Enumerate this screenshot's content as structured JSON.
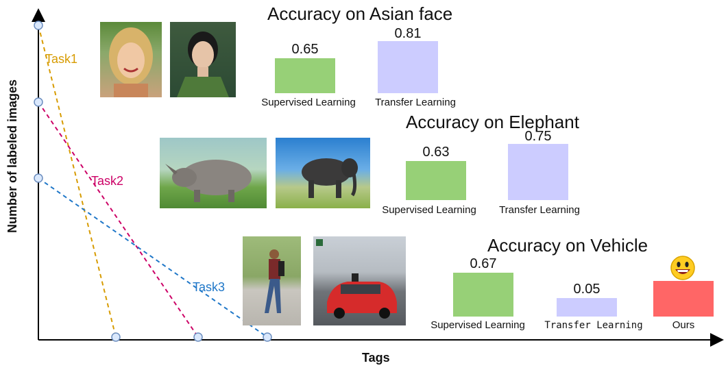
{
  "axes": {
    "y_label": "Number of labeled images",
    "x_label": "Tags"
  },
  "tasks": [
    {
      "label": "Task1",
      "color": "#d79b00"
    },
    {
      "label": "Task2",
      "color": "#cc0066"
    },
    {
      "label": "Task3",
      "color": "#1f77c8"
    }
  ],
  "panels": [
    {
      "title": "Accuracy on Asian face",
      "bars": [
        {
          "label": "Supervised Learning",
          "value": "0.65",
          "color": "#97d077"
        },
        {
          "label": "Transfer Learning",
          "value": "0.81",
          "color": "#ccccff"
        }
      ]
    },
    {
      "title": "Accuracy on Elephant",
      "bars": [
        {
          "label": "Supervised Learning",
          "value": "0.63",
          "color": "#97d077"
        },
        {
          "label": "Transfer Learning",
          "value": "0.75",
          "color": "#ccccff"
        }
      ]
    },
    {
      "title": "Accuracy on Vehicle",
      "bars": [
        {
          "label": "Supervised Learning",
          "value": "0.67",
          "color": "#97d077"
        },
        {
          "label": "Transfer Learning",
          "value": "0.05",
          "color": "#ccccff"
        },
        {
          "label": "Ours",
          "value": "",
          "color": "#ff6666"
        }
      ]
    }
  ],
  "icons": {
    "smiley": "smiley-emoji-icon"
  }
}
